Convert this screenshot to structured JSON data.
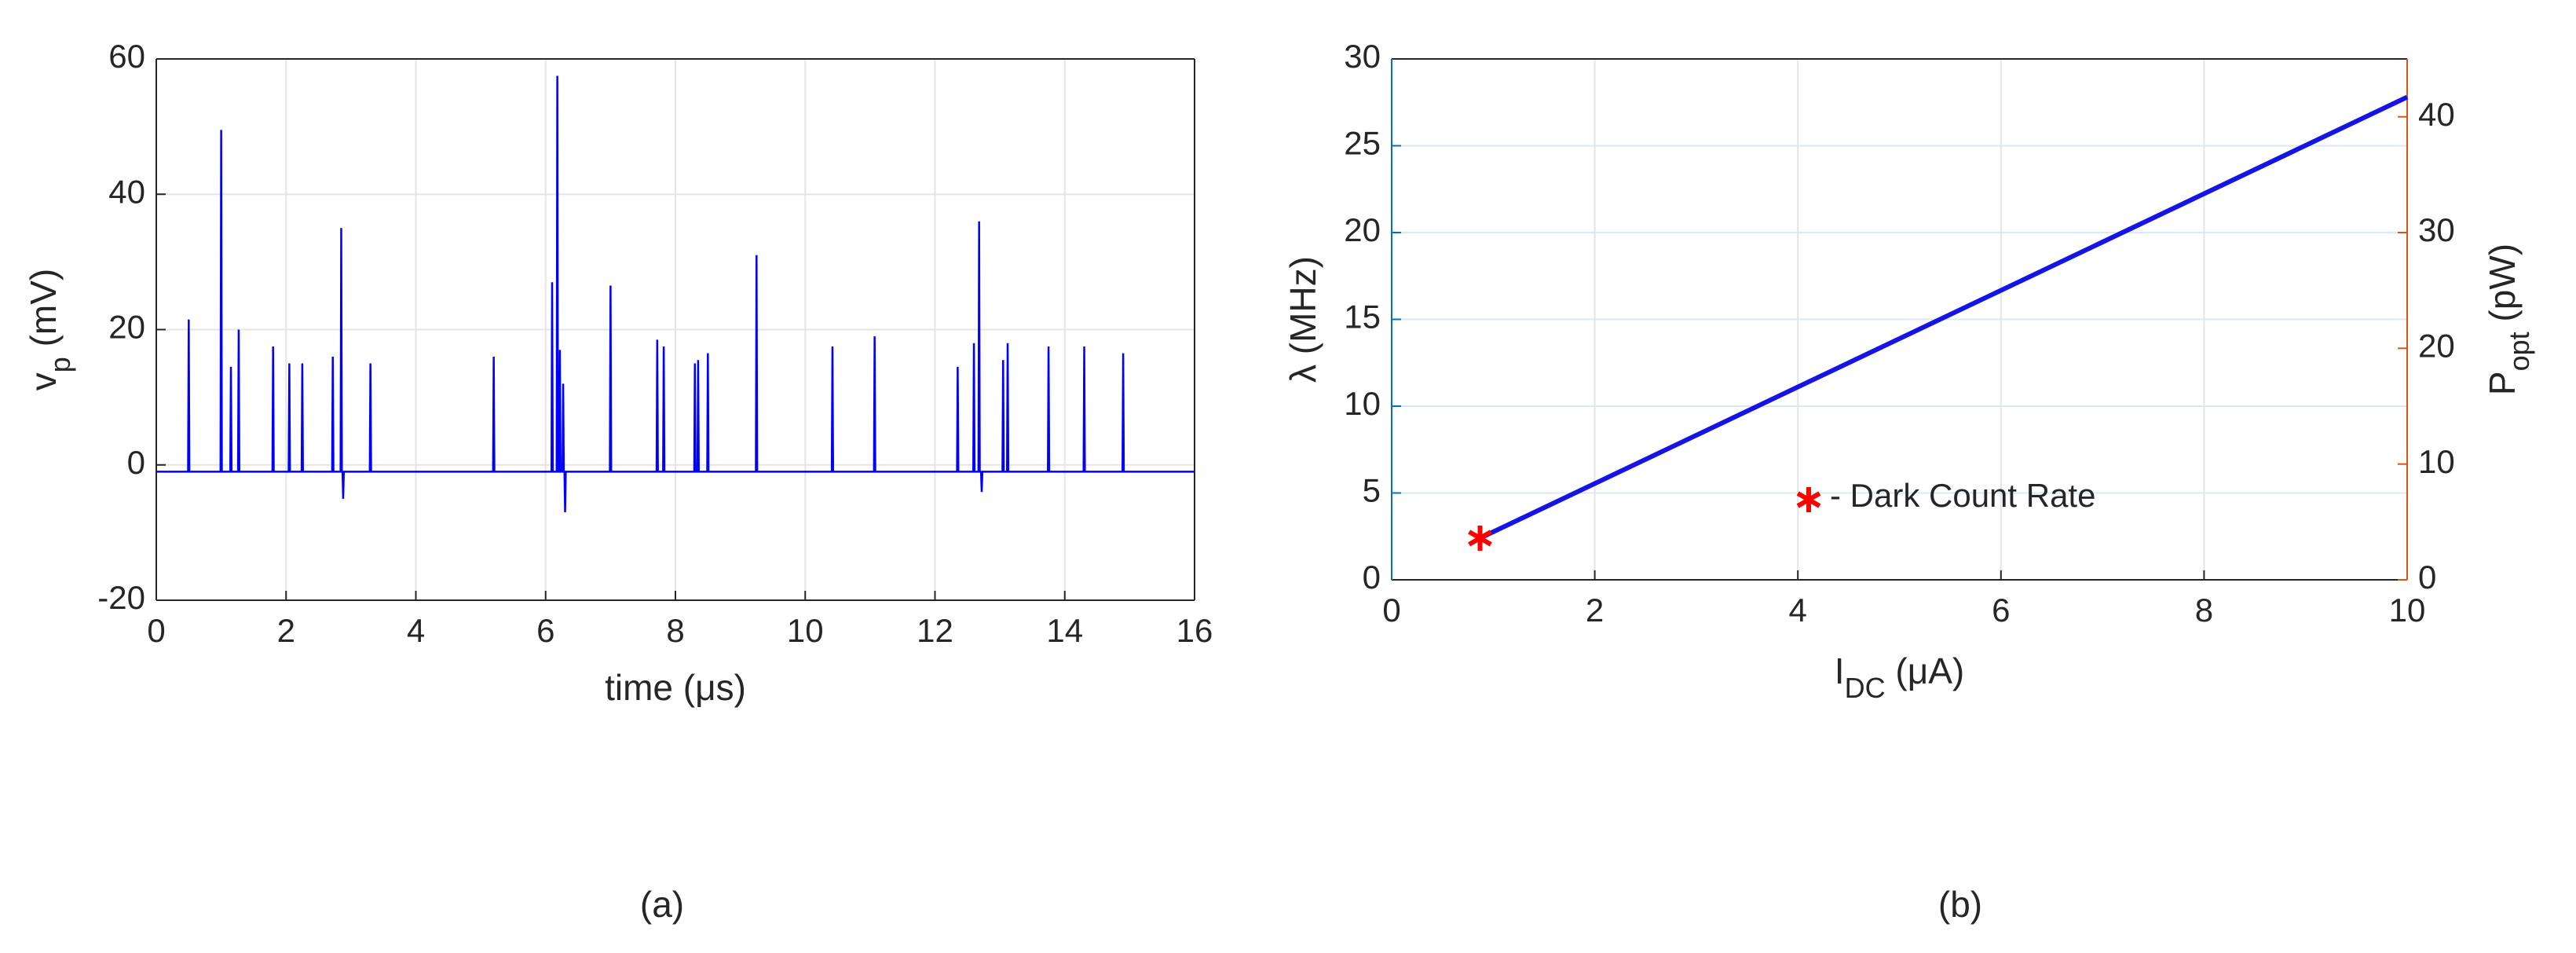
{
  "chart_data": [
    {
      "type": "line",
      "caption": "(a)",
      "xlabel": [
        "time (",
        "μ",
        "s)"
      ],
      "ylabel": [
        "v",
        "p",
        " (mV)"
      ],
      "color": "#0000ff",
      "x": [
        0,
        0.49,
        0.5,
        0.51,
        0.99,
        1.0,
        1.01,
        1.14,
        1.15,
        1.16,
        1.26,
        1.27,
        1.28,
        1.79,
        1.8,
        1.81,
        2.04,
        2.05,
        2.06,
        2.24,
        2.25,
        2.26,
        2.71,
        2.72,
        2.73,
        2.84,
        2.85,
        2.86,
        2.87,
        2.88,
        2.89,
        3.29,
        3.3,
        3.31,
        5.19,
        5.2,
        5.21,
        6.09,
        6.1,
        6.11,
        6.17,
        6.18,
        6.19,
        6.21,
        6.22,
        6.23,
        6.26,
        6.27,
        6.28,
        6.29,
        6.3,
        6.31,
        6.99,
        7.0,
        7.01,
        7.71,
        7.72,
        7.73,
        7.81,
        7.82,
        7.83,
        8.29,
        8.3,
        8.31,
        8.34,
        8.35,
        8.36,
        8.49,
        8.5,
        8.51,
        9.24,
        9.25,
        9.26,
        10.41,
        10.42,
        10.43,
        11.06,
        11.07,
        11.08,
        12.34,
        12.35,
        12.36,
        12.59,
        12.6,
        12.61,
        12.67,
        12.68,
        12.69,
        12.71,
        12.72,
        12.73,
        13.04,
        13.05,
        13.06,
        13.11,
        13.12,
        13.13,
        13.74,
        13.75,
        13.76,
        14.29,
        14.3,
        14.31,
        14.89,
        14.9,
        14.91,
        16
      ],
      "values": [
        -1,
        -1,
        21.5,
        -1,
        -1,
        49.5,
        -1,
        -1,
        14.5,
        -1,
        -1,
        20,
        -1,
        -1,
        17.5,
        -1,
        -1,
        15,
        -1,
        -1,
        15,
        -1,
        -1,
        16,
        -1,
        -1,
        35,
        -1,
        -1,
        -5,
        -1,
        -1,
        15,
        -1,
        -1,
        16,
        -1,
        -1,
        27,
        -1,
        -1,
        57.5,
        -1,
        -1,
        17,
        -1,
        -1,
        12,
        -1,
        -1,
        -7,
        -1,
        -1,
        26.5,
        -1,
        -1,
        18.5,
        -1,
        -1,
        17.5,
        -1,
        -1,
        15,
        -1,
        -1,
        15.5,
        -1,
        -1,
        16.5,
        -1,
        -1,
        31,
        -1,
        -1,
        17.5,
        -1,
        -1,
        19,
        -1,
        -1,
        14.5,
        -1,
        -1,
        18,
        -1,
        -1,
        36,
        -1,
        -1,
        -4,
        -1,
        -1,
        15.5,
        -1,
        -1,
        18,
        -1,
        -1,
        17.5,
        -1,
        -1,
        17.5,
        -1,
        -1,
        16.5,
        -1,
        -1
      ],
      "xlim": [
        0,
        16
      ],
      "xticks": [
        0,
        2,
        4,
        6,
        8,
        10,
        12,
        14,
        16
      ],
      "ylim": [
        -20,
        60
      ],
      "yticks": [
        -20,
        0,
        20,
        40,
        60
      ],
      "grid": true
    },
    {
      "type": "line",
      "caption": "(b)",
      "xlabel": [
        "I",
        "DC",
        " (",
        "μ",
        "A)"
      ],
      "ylabel": [
        "λ (MHz)"
      ],
      "y2label": [
        "P",
        "opt",
        " (pW)"
      ],
      "color": "#1414e6",
      "ycolor": "#0072bd",
      "y2color": "#d95319",
      "x": [
        0.87,
        10
      ],
      "values": [
        2.4,
        27.8
      ],
      "markers": {
        "x": [
          0.87
        ],
        "values": [
          2.4
        ],
        "color": "#ff0000"
      },
      "annotation": "- Dark Count Rate",
      "xlim": [
        0,
        10
      ],
      "xticks": [
        0,
        2,
        4,
        6,
        8,
        10
      ],
      "ylim": [
        0,
        30
      ],
      "yticks": [
        0,
        5,
        10,
        15,
        20,
        25,
        30
      ],
      "y2lim": [
        0,
        45
      ],
      "y2ticks": [
        0,
        10,
        20,
        30,
        40
      ],
      "grid": true
    }
  ]
}
